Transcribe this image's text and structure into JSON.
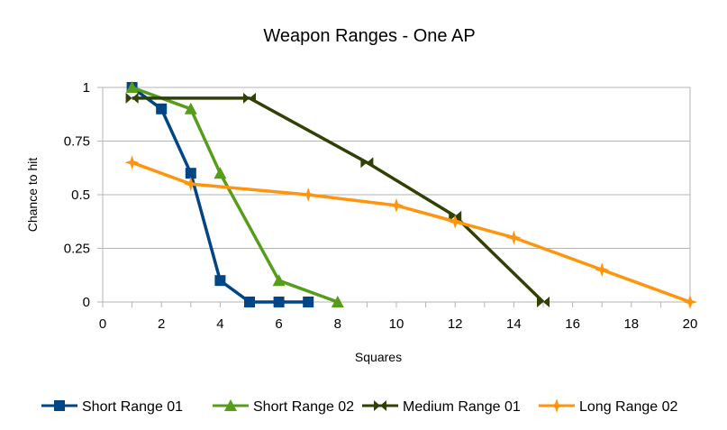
{
  "chart_data": {
    "type": "line",
    "title": "Weapon Ranges - One AP",
    "xlabel": "Squares",
    "ylabel": "Chance to hit",
    "xlim": [
      0,
      20
    ],
    "ylim": [
      0,
      1
    ],
    "xticks": [
      0,
      2,
      4,
      6,
      8,
      10,
      12,
      14,
      16,
      18,
      20
    ],
    "yticks": [
      0,
      0.25,
      0.5,
      0.75,
      1
    ],
    "ytick_labels": [
      "0",
      "0.25",
      "0.5",
      "0.75",
      "1"
    ],
    "grid": "horizontal",
    "legend_position": "bottom",
    "series": [
      {
        "name": "Short Range 01",
        "color": "#004586",
        "marker": "square",
        "x": [
          1,
          2,
          3,
          4,
          5,
          6,
          7
        ],
        "y": [
          1,
          0.9,
          0.6,
          0.1,
          0,
          0,
          0
        ]
      },
      {
        "name": "Short Range 02",
        "color": "#579d1c",
        "marker": "triangle",
        "x": [
          1,
          3,
          4,
          6,
          8
        ],
        "y": [
          1,
          0.9,
          0.6,
          0.1,
          0
        ]
      },
      {
        "name": "Medium Range 01",
        "color": "#314004",
        "marker": "bowtie",
        "x": [
          1,
          5,
          9,
          12,
          15
        ],
        "y": [
          0.95,
          0.95,
          0.65,
          0.4,
          0
        ]
      },
      {
        "name": "Long Range 02",
        "color": "#ff950e",
        "marker": "star",
        "x": [
          1,
          3,
          7,
          10,
          12,
          14,
          17,
          20
        ],
        "y": [
          0.65,
          0.55,
          0.5,
          0.45,
          0.375,
          0.3,
          0.15,
          0
        ]
      }
    ]
  }
}
